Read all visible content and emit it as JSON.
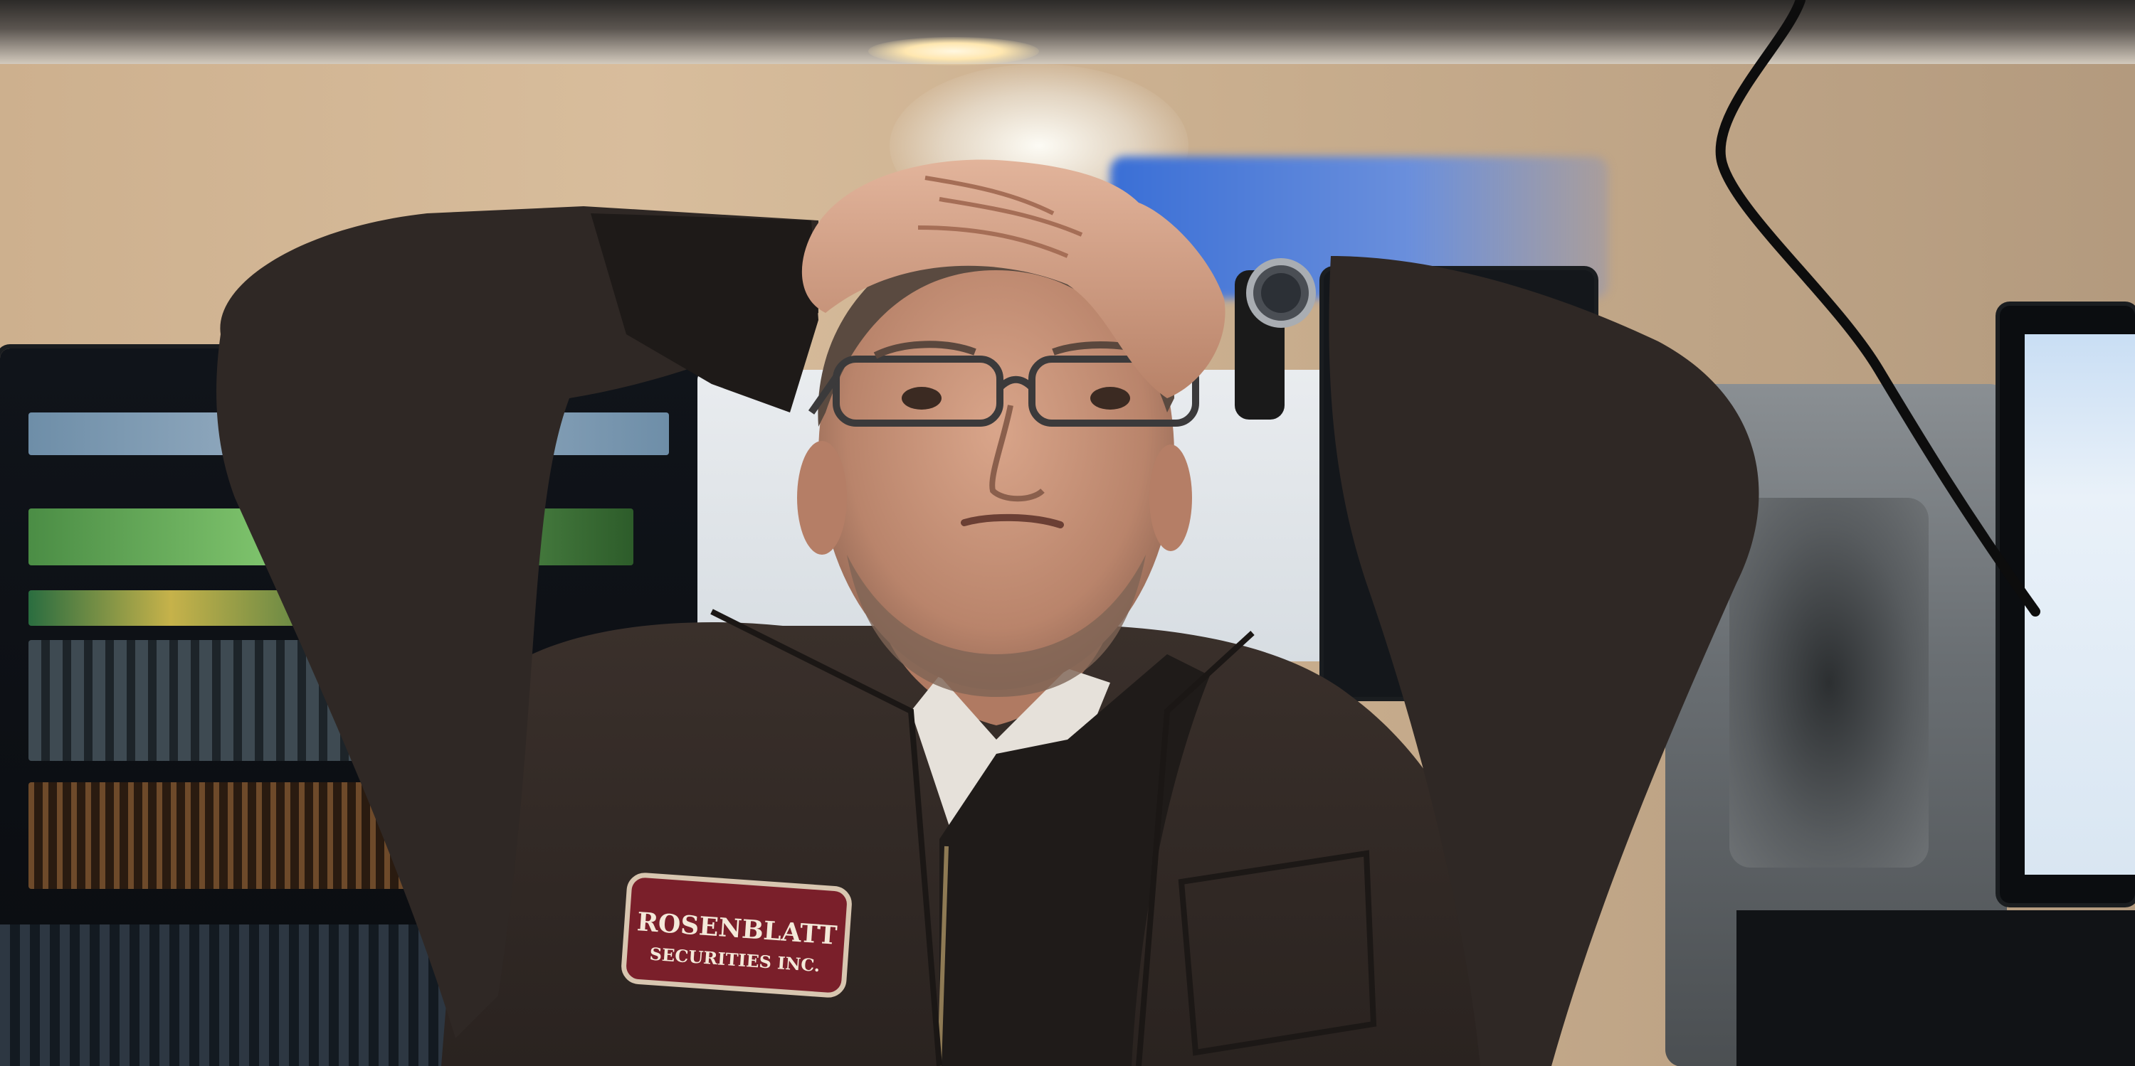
{
  "photo": {
    "badge": {
      "line1": "ROSENBLATT",
      "line2": "SECURITIES INC."
    }
  }
}
